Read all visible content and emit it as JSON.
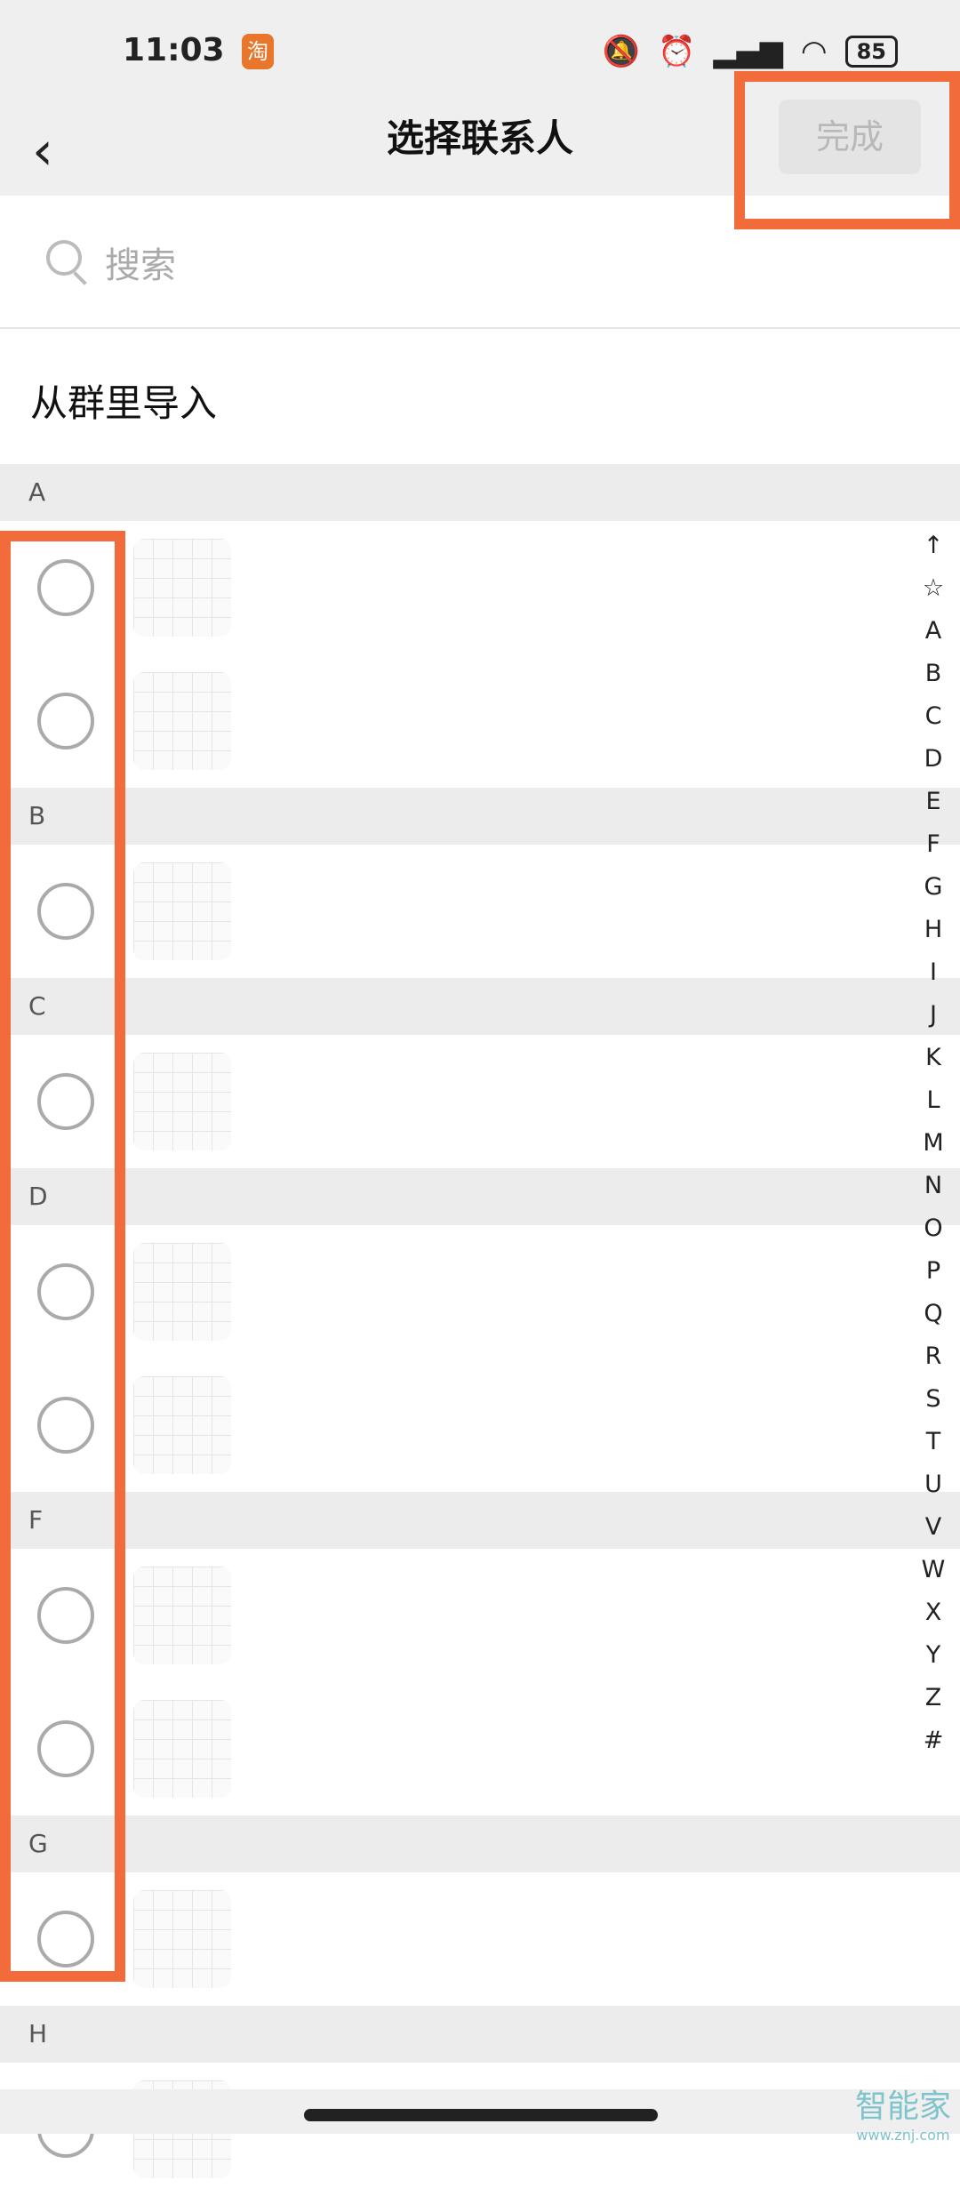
{
  "status_bar": {
    "time": "11:03",
    "app_icon": "淘",
    "battery": "85",
    "icons": [
      "mute-bell-icon",
      "alarm-icon",
      "hd-signal-icon",
      "wifi-icon",
      "battery-icon"
    ]
  },
  "header": {
    "title": "选择联系人",
    "back_icon": "chevron-left-icon",
    "done_label": "完成"
  },
  "search": {
    "placeholder": "搜索"
  },
  "import_label": "从群里导入",
  "sections": [
    {
      "letter": "A",
      "rows": 2
    },
    {
      "letter": "B",
      "rows": 1
    },
    {
      "letter": "C",
      "rows": 1
    },
    {
      "letter": "D",
      "rows": 2
    },
    {
      "letter": "F",
      "rows": 2
    },
    {
      "letter": "G",
      "rows": 1
    },
    {
      "letter": "H",
      "rows": 1
    }
  ],
  "index_bar": [
    "↑",
    "☆",
    "A",
    "B",
    "C",
    "D",
    "E",
    "F",
    "G",
    "H",
    "I",
    "J",
    "K",
    "L",
    "M",
    "N",
    "O",
    "P",
    "Q",
    "R",
    "S",
    "T",
    "U",
    "V",
    "W",
    "X",
    "Y",
    "Z",
    "#"
  ],
  "annotation_color": "#f26b3a",
  "watermark": {
    "name": "智能家",
    "url": "www.znj.com"
  }
}
